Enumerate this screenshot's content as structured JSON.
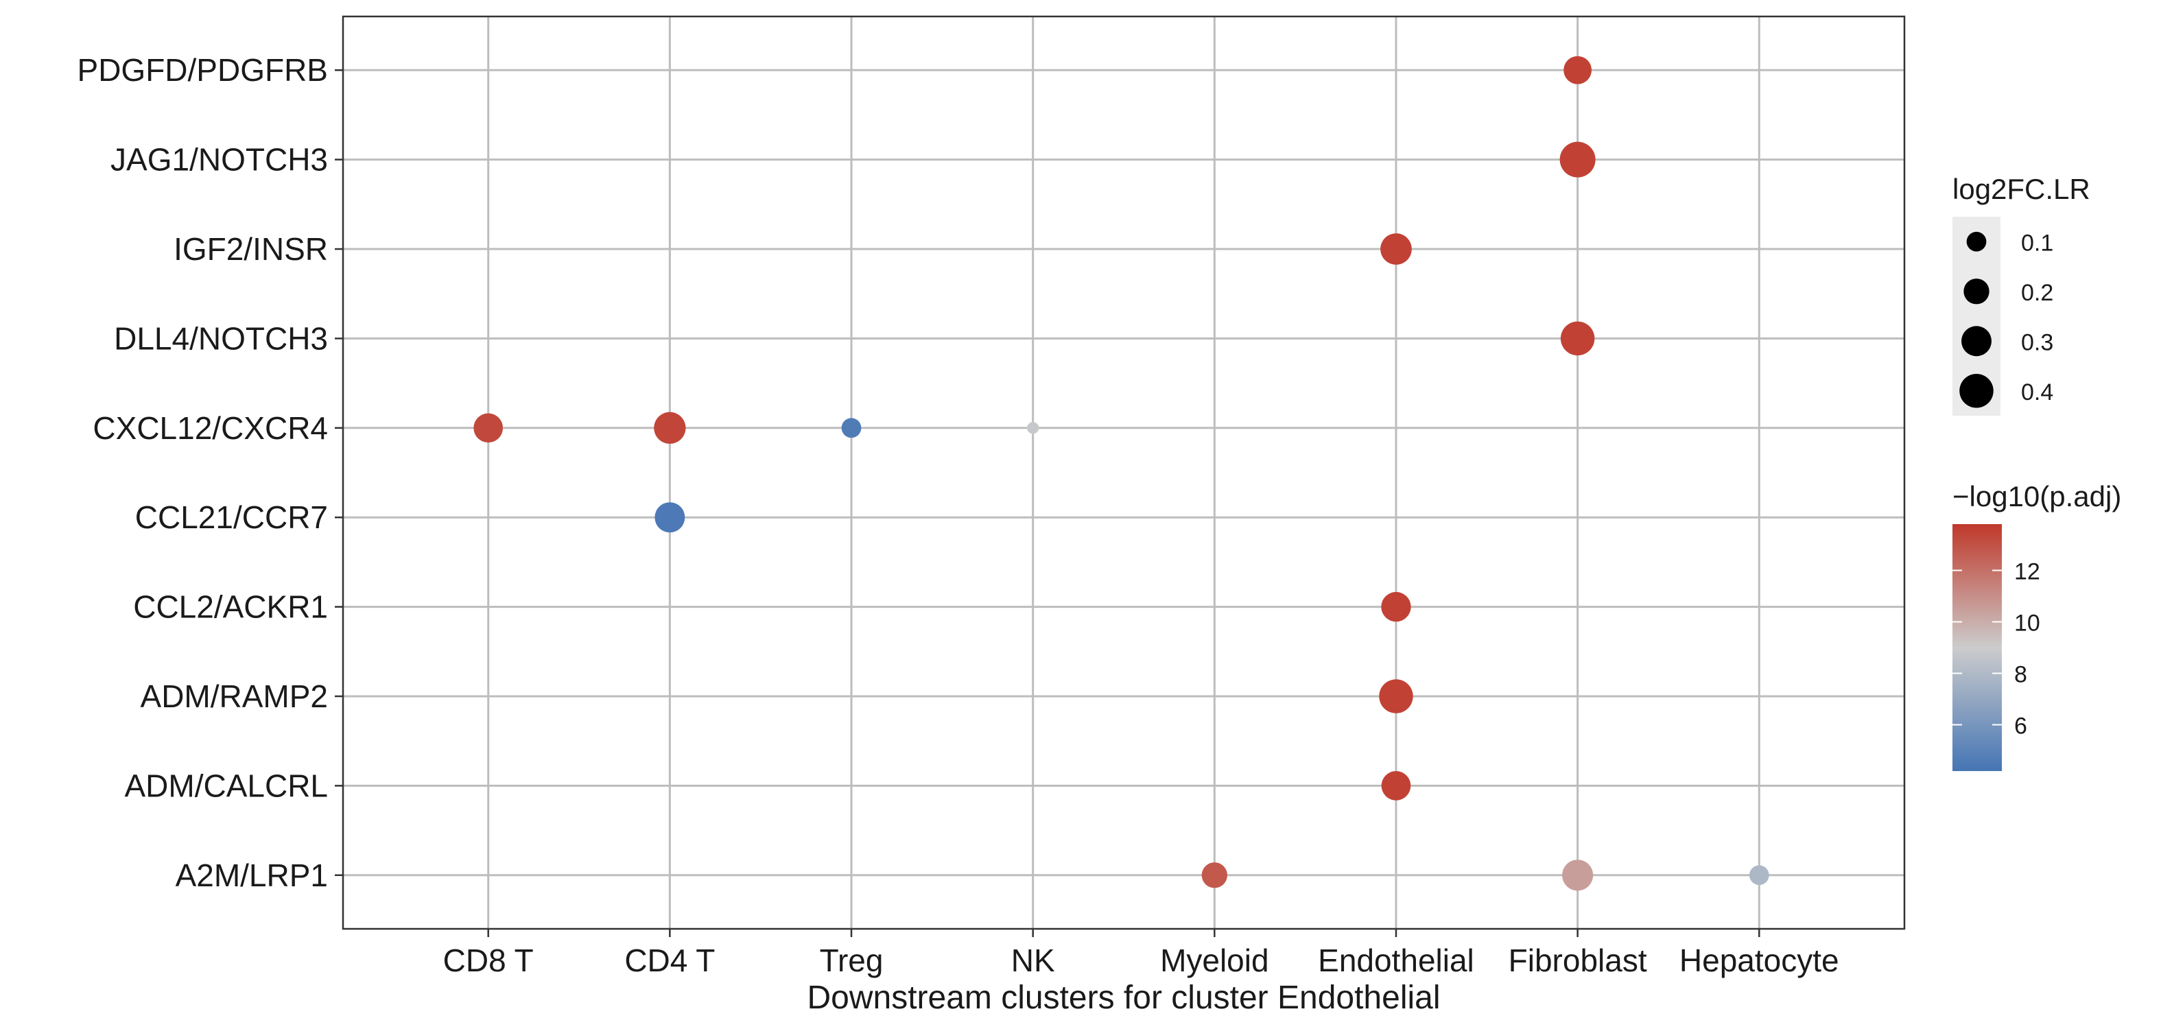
{
  "chart_data": {
    "type": "scatter",
    "title": "",
    "xlabel": "Downstream clusters for cluster Endothelial",
    "ylabel": "",
    "x_categories": [
      "CD8 T",
      "CD4 T",
      "Treg",
      "NK",
      "Myeloid",
      "Endothelial",
      "Fibroblast",
      "Hepatocyte"
    ],
    "y_categories": [
      "A2M/LRP1",
      "ADM/CALCRL",
      "ADM/RAMP2",
      "CCL2/ACKR1",
      "CCL21/CCR7",
      "CXCL12/CXCR4",
      "DLL4/NOTCH3",
      "IGF2/INSR",
      "JAG1/NOTCH3",
      "PDGFD/PDGFRB"
    ],
    "grid": true,
    "points": [
      {
        "x": "Fibroblast",
        "y": "PDGFD/PDGFRB",
        "log2FC_LR": 0.25,
        "neg_log10_padj": 13.5
      },
      {
        "x": "Fibroblast",
        "y": "JAG1/NOTCH3",
        "log2FC_LR": 0.45,
        "neg_log10_padj": 13.5
      },
      {
        "x": "Endothelial",
        "y": "IGF2/INSR",
        "log2FC_LR": 0.33,
        "neg_log10_padj": 13.5
      },
      {
        "x": "Fibroblast",
        "y": "DLL4/NOTCH3",
        "log2FC_LR": 0.4,
        "neg_log10_padj": 13.5
      },
      {
        "x": "CD8 T",
        "y": "CXCL12/CXCR4",
        "log2FC_LR": 0.28,
        "neg_log10_padj": 13.3
      },
      {
        "x": "CD4 T",
        "y": "CXCL12/CXCR4",
        "log2FC_LR": 0.34,
        "neg_log10_padj": 13.4
      },
      {
        "x": "Treg",
        "y": "CXCL12/CXCR4",
        "log2FC_LR": 0.1,
        "neg_log10_padj": 4.6
      },
      {
        "x": "NK",
        "y": "CXCL12/CXCR4",
        "log2FC_LR": 0.02,
        "neg_log10_padj": 8.8
      },
      {
        "x": "CD4 T",
        "y": "CCL21/CCR7",
        "log2FC_LR": 0.3,
        "neg_log10_padj": 4.5
      },
      {
        "x": "Endothelial",
        "y": "CCL2/ACKR1",
        "log2FC_LR": 0.29,
        "neg_log10_padj": 13.5
      },
      {
        "x": "Endothelial",
        "y": "ADM/RAMP2",
        "log2FC_LR": 0.4,
        "neg_log10_padj": 13.5
      },
      {
        "x": "Endothelial",
        "y": "ADM/CALCRL",
        "log2FC_LR": 0.28,
        "neg_log10_padj": 13.5
      },
      {
        "x": "Myeloid",
        "y": "A2M/LRP1",
        "log2FC_LR": 0.2,
        "neg_log10_padj": 12.8
      },
      {
        "x": "Fibroblast",
        "y": "A2M/LRP1",
        "log2FC_LR": 0.32,
        "neg_log10_padj": 10.5
      },
      {
        "x": "Hepatocyte",
        "y": "A2M/LRP1",
        "log2FC_LR": 0.1,
        "neg_log10_padj": 7.9
      }
    ],
    "size_legend": {
      "title": "log2FC.LR",
      "values": [
        0.1,
        0.2,
        0.3,
        0.4
      ],
      "labels": [
        "0.1",
        "0.2",
        "0.3",
        "0.4"
      ]
    },
    "color_legend": {
      "title": "−log10(p.adj)",
      "range": [
        4.2,
        13.8
      ],
      "ticks": [
        6,
        8,
        10,
        12
      ],
      "tick_labels": [
        "6",
        "8",
        "10",
        "12"
      ],
      "colors": {
        "low": "#4575b4",
        "mid": "#cccccc",
        "high": "#c0392b"
      }
    }
  }
}
